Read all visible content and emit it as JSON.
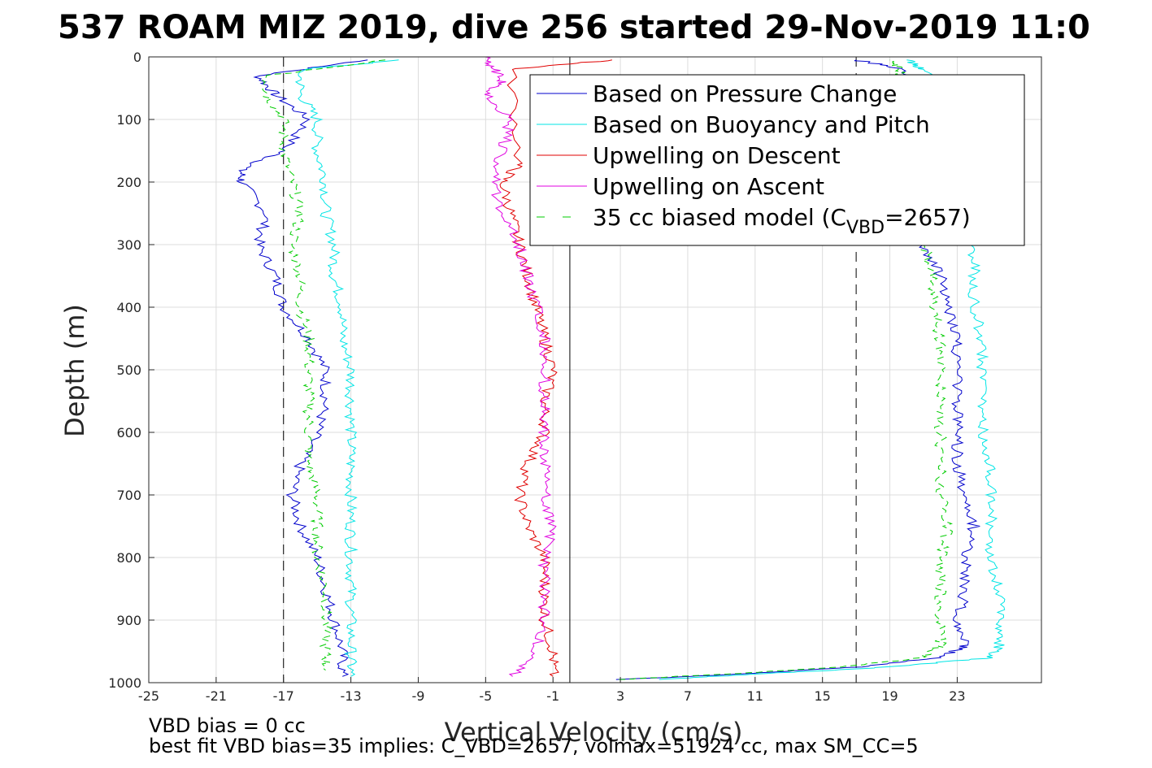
{
  "chart_data": {
    "type": "line",
    "title": "537 ROAM MIZ 2019, dive 256 started 29-Nov-2019 11:0",
    "xlabel": "Vertical Velocity (cm/s)",
    "ylabel": "Depth (m)",
    "xlim": [
      -25,
      28
    ],
    "ylim": [
      0,
      1000
    ],
    "y_reversed": true,
    "grid": true,
    "x_ticks": [
      -25,
      -21,
      -17,
      -13,
      -9,
      -5,
      -1,
      3,
      7,
      11,
      15,
      19,
      23
    ],
    "y_ticks": [
      0,
      100,
      200,
      300,
      400,
      500,
      600,
      700,
      800,
      900,
      1000
    ],
    "x_tick_labels": [
      "-25",
      "-21",
      "-17",
      "-13",
      "-9",
      "-5",
      "-1",
      "3",
      "7",
      "11",
      "15",
      "19",
      "23"
    ],
    "y_tick_labels": [
      "0",
      "100",
      "200",
      "300",
      "400",
      "500",
      "600",
      "700",
      "800",
      "900",
      "1000"
    ],
    "reference_lines": {
      "solid_x": 0,
      "dashed_x": [
        -17,
        17
      ]
    },
    "legend_placement": "top-right",
    "legend": [
      {
        "label": "Based on Pressure Change",
        "color": "#0000cc",
        "dash": "solid"
      },
      {
        "label": "Based on Buoyancy and Pitch",
        "color": "#00e5e5",
        "dash": "solid"
      },
      {
        "label": "Upwelling on Descent",
        "color": "#e00000",
        "dash": "solid"
      },
      {
        "label": "Upwelling on Ascent",
        "color": "#e000e0",
        "dash": "solid"
      },
      {
        "label_prefix": "35 cc biased model (C",
        "label_sub": "VBD",
        "label_suffix": "=2657)",
        "color": "#00cc00",
        "dash": "dashed"
      }
    ],
    "series": [
      {
        "name": "Based on Pressure Change (descent)",
        "color": "#0000cc",
        "depth": [
          5,
          30,
          60,
          100,
          150,
          180,
          200,
          250,
          300,
          350,
          400,
          450,
          500,
          550,
          600,
          650,
          700,
          750,
          800,
          850,
          900,
          950,
          990
        ],
        "x": [
          -12,
          -18.5,
          -17.5,
          -15.5,
          -17,
          -19.5,
          -19.5,
          -18,
          -18.5,
          -17.5,
          -17,
          -15.5,
          -14.5,
          -14.5,
          -15,
          -16,
          -16.5,
          -16,
          -15,
          -14.5,
          -14,
          -13.5,
          -13.5
        ]
      },
      {
        "name": "Based on Buoyancy and Pitch (descent)",
        "color": "#00e5e5",
        "depth": [
          5,
          20,
          60,
          100,
          150,
          200,
          250,
          300,
          350,
          400,
          450,
          500,
          550,
          600,
          650,
          700,
          750,
          800,
          850,
          900,
          950,
          990
        ],
        "x": [
          -10,
          -16,
          -16,
          -15,
          -15,
          -14.5,
          -14.5,
          -14,
          -14,
          -13.5,
          -13.5,
          -13,
          -13,
          -13,
          -13,
          -13,
          -13,
          -13,
          -13,
          -13,
          -13,
          -13
        ]
      },
      {
        "name": "35 cc biased model (descent)",
        "color": "#00cc00",
        "depth": [
          5,
          30,
          60,
          100,
          150,
          200,
          250,
          300,
          350,
          400,
          450,
          500,
          550,
          600,
          650,
          700,
          750,
          800,
          850,
          900,
          950,
          980
        ],
        "x": [
          -11,
          -18,
          -18,
          -17,
          -17,
          -16.5,
          -16,
          -16.5,
          -16,
          -16,
          -15.5,
          -15.5,
          -15.5,
          -15.5,
          -15.5,
          -15,
          -15,
          -15,
          -14.5,
          -14.5,
          -14.5,
          -14.5
        ]
      },
      {
        "name": "Upwelling on Descent",
        "color": "#e00000",
        "depth": [
          5,
          20,
          170,
          200,
          250,
          300,
          350,
          400,
          450,
          500,
          550,
          600,
          650,
          700,
          750,
          800,
          850,
          900,
          950,
          990
        ],
        "x": [
          2.5,
          -3.5,
          -3,
          -4,
          -3.5,
          -3,
          -2.5,
          -2,
          -1.5,
          -1,
          -1.5,
          -1.5,
          -2.5,
          -3,
          -2.5,
          -1.5,
          -1.5,
          -1.5,
          -1,
          -1
        ]
      },
      {
        "name": "Upwelling on Ascent",
        "color": "#e000e0",
        "depth": [
          990,
          950,
          900,
          850,
          800,
          750,
          700,
          650,
          600,
          550,
          500,
          450,
          400,
          350,
          300,
          250,
          200,
          150,
          100,
          60,
          40,
          20,
          0
        ],
        "x": [
          -3.5,
          -2,
          -1.5,
          -1.5,
          -1.5,
          -1,
          -1.5,
          -1.5,
          -1.5,
          -1.5,
          -1.5,
          -1.5,
          -2,
          -2.5,
          -3,
          -4,
          -4.5,
          -4,
          -3.5,
          -5,
          -4,
          -4.5,
          -5
        ]
      },
      {
        "name": "Based on Pressure Change (ascent)",
        "color": "#0000cc",
        "depth": [
          995,
          985,
          975,
          960,
          940,
          900,
          850,
          800,
          750,
          700,
          650,
          600,
          550,
          500,
          450,
          400,
          350,
          300,
          250,
          200,
          150,
          100,
          50,
          20,
          5
        ],
        "x": [
          3,
          11,
          17,
          22,
          23.5,
          23,
          23.5,
          23.5,
          24,
          23.5,
          23,
          23,
          23,
          23,
          23,
          22.5,
          22,
          21,
          20,
          20,
          20,
          20,
          20,
          20,
          17
        ]
      },
      {
        "name": "Based on Buoyancy and Pitch (ascent)",
        "color": "#00e5e5",
        "depth": [
          995,
          985,
          975,
          960,
          940,
          900,
          850,
          800,
          750,
          700,
          650,
          600,
          550,
          500,
          450,
          400,
          350,
          300,
          250,
          200,
          150,
          100,
          50,
          20,
          5
        ],
        "x": [
          5,
          12,
          19,
          25,
          25.5,
          25.5,
          25.5,
          25,
          25,
          25,
          25,
          24.5,
          24.5,
          24.5,
          24.5,
          24,
          24,
          24,
          23.5,
          23,
          22.5,
          22,
          22,
          21,
          20
        ]
      },
      {
        "name": "35 cc biased model (ascent)",
        "color": "#00cc00",
        "depth": [
          995,
          985,
          975,
          960,
          940,
          900,
          850,
          800,
          750,
          700,
          650,
          600,
          550,
          500,
          450,
          400,
          350,
          300,
          250,
          200,
          150,
          100,
          50,
          20,
          5
        ],
        "x": [
          3,
          10,
          16,
          21,
          22,
          22,
          22,
          22,
          22.5,
          22,
          22,
          22,
          22,
          22,
          22,
          21.5,
          21.5,
          21,
          21,
          20.5,
          20.5,
          20,
          20,
          19.5,
          19
        ]
      }
    ]
  },
  "footer": {
    "line1": "VBD bias = 0 cc",
    "line2": "best fit VBD bias=35 implies: C_VBD=2657, volmax=51924 cc, max SM_CC=5"
  }
}
